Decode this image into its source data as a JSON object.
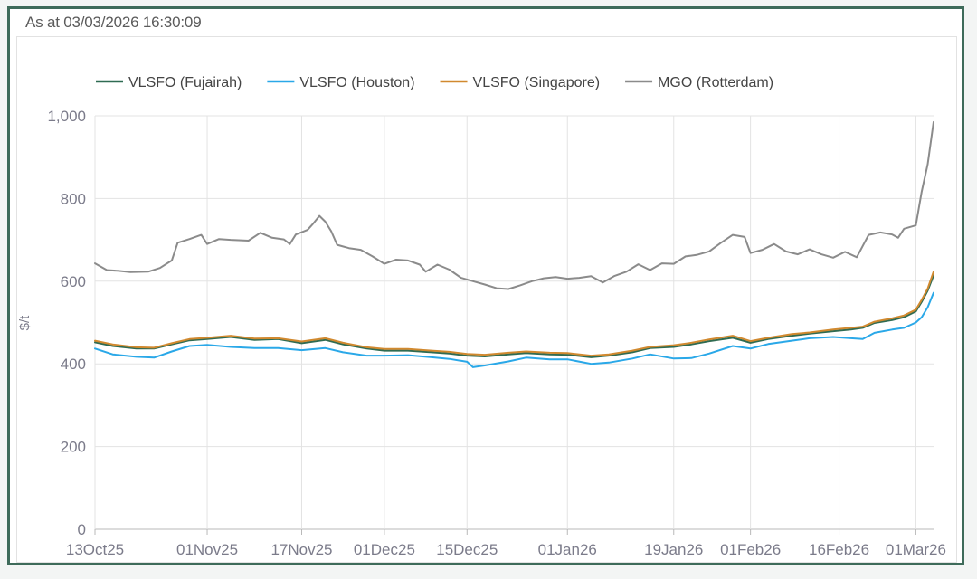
{
  "header": {
    "timestamp": "As at 03/03/2026 16:30:09"
  },
  "colors": {
    "frame": "#3e6b5a",
    "grid": "#e3e3e3",
    "axis": "#b9b9b9",
    "series": [
      "#2f6b52",
      "#2aa8e8",
      "#d1892f",
      "#8b8b8b"
    ]
  },
  "chart_data": {
    "type": "line",
    "title": "",
    "xlabel": "",
    "ylabel": "$/t",
    "ylim": [
      0,
      1000
    ],
    "yticks": [
      0,
      200,
      400,
      600,
      800,
      1000
    ],
    "ytick_labels": [
      "0",
      "200",
      "400",
      "600",
      "800",
      "1,000"
    ],
    "xlim_days": [
      0,
      142
    ],
    "xticks": [
      {
        "label": "13Oct25",
        "day": 0
      },
      {
        "label": "01Nov25",
        "day": 19
      },
      {
        "label": "17Nov25",
        "day": 35
      },
      {
        "label": "01Dec25",
        "day": 49
      },
      {
        "label": "15Dec25",
        "day": 63
      },
      {
        "label": "01Jan26",
        "day": 80
      },
      {
        "label": "19Jan26",
        "day": 98
      },
      {
        "label": "01Feb26",
        "day": 111
      },
      {
        "label": "16Feb26",
        "day": 126
      },
      {
        "label": "01Mar26",
        "day": 139
      }
    ],
    "grid": true,
    "legend_position": "top",
    "series": [
      {
        "name": "VLSFO (Fujairah)",
        "points": [
          [
            0,
            452
          ],
          [
            3,
            443
          ],
          [
            7,
            437
          ],
          [
            10,
            437
          ],
          [
            13,
            447
          ],
          [
            16,
            457
          ],
          [
            19,
            460
          ],
          [
            23,
            465
          ],
          [
            27,
            458
          ],
          [
            31,
            460
          ],
          [
            35,
            450
          ],
          [
            39,
            458
          ],
          [
            42,
            447
          ],
          [
            46,
            437
          ],
          [
            49,
            432
          ],
          [
            53,
            432
          ],
          [
            57,
            428
          ],
          [
            60,
            425
          ],
          [
            63,
            420
          ],
          [
            66,
            418
          ],
          [
            70,
            423
          ],
          [
            73,
            426
          ],
          [
            77,
            423
          ],
          [
            80,
            422
          ],
          [
            84,
            416
          ],
          [
            87,
            420
          ],
          [
            91,
            428
          ],
          [
            94,
            438
          ],
          [
            98,
            441
          ],
          [
            101,
            447
          ],
          [
            104,
            455
          ],
          [
            108,
            463
          ],
          [
            111,
            451
          ],
          [
            114,
            460
          ],
          [
            118,
            468
          ],
          [
            121,
            473
          ],
          [
            125,
            479
          ],
          [
            128,
            483
          ],
          [
            130,
            487
          ],
          [
            132,
            499
          ],
          [
            135,
            506
          ],
          [
            137,
            513
          ],
          [
            139,
            527
          ],
          [
            140,
            550
          ],
          [
            141,
            577
          ],
          [
            142,
            614
          ]
        ]
      },
      {
        "name": "VLSFO (Houston)",
        "points": [
          [
            0,
            437
          ],
          [
            3,
            423
          ],
          [
            7,
            417
          ],
          [
            10,
            415
          ],
          [
            13,
            430
          ],
          [
            16,
            443
          ],
          [
            19,
            446
          ],
          [
            23,
            441
          ],
          [
            27,
            438
          ],
          [
            31,
            438
          ],
          [
            35,
            433
          ],
          [
            39,
            438
          ],
          [
            42,
            428
          ],
          [
            46,
            420
          ],
          [
            49,
            420
          ],
          [
            53,
            421
          ],
          [
            57,
            416
          ],
          [
            60,
            412
          ],
          [
            63,
            405
          ],
          [
            64,
            392
          ],
          [
            66,
            396
          ],
          [
            70,
            406
          ],
          [
            73,
            415
          ],
          [
            77,
            411
          ],
          [
            80,
            411
          ],
          [
            84,
            400
          ],
          [
            87,
            403
          ],
          [
            91,
            413
          ],
          [
            94,
            423
          ],
          [
            98,
            413
          ],
          [
            101,
            414
          ],
          [
            104,
            425
          ],
          [
            108,
            443
          ],
          [
            111,
            437
          ],
          [
            114,
            448
          ],
          [
            118,
            456
          ],
          [
            121,
            462
          ],
          [
            125,
            465
          ],
          [
            128,
            462
          ],
          [
            130,
            460
          ],
          [
            132,
            475
          ],
          [
            135,
            483
          ],
          [
            137,
            487
          ],
          [
            139,
            500
          ],
          [
            140,
            513
          ],
          [
            141,
            537
          ],
          [
            142,
            572
          ]
        ]
      },
      {
        "name": "VLSFO (Singapore)",
        "points": [
          [
            0,
            456
          ],
          [
            3,
            447
          ],
          [
            7,
            440
          ],
          [
            10,
            439
          ],
          [
            13,
            450
          ],
          [
            16,
            460
          ],
          [
            19,
            463
          ],
          [
            23,
            468
          ],
          [
            27,
            461
          ],
          [
            31,
            462
          ],
          [
            35,
            454
          ],
          [
            39,
            462
          ],
          [
            42,
            451
          ],
          [
            46,
            440
          ],
          [
            49,
            436
          ],
          [
            53,
            436
          ],
          [
            57,
            432
          ],
          [
            60,
            429
          ],
          [
            63,
            424
          ],
          [
            66,
            422
          ],
          [
            70,
            427
          ],
          [
            73,
            430
          ],
          [
            77,
            427
          ],
          [
            80,
            426
          ],
          [
            84,
            420
          ],
          [
            87,
            423
          ],
          [
            91,
            432
          ],
          [
            94,
            441
          ],
          [
            98,
            445
          ],
          [
            101,
            451
          ],
          [
            104,
            459
          ],
          [
            108,
            468
          ],
          [
            111,
            455
          ],
          [
            114,
            463
          ],
          [
            118,
            472
          ],
          [
            121,
            476
          ],
          [
            125,
            483
          ],
          [
            128,
            487
          ],
          [
            130,
            490
          ],
          [
            132,
            502
          ],
          [
            135,
            510
          ],
          [
            137,
            517
          ],
          [
            139,
            531
          ],
          [
            140,
            555
          ],
          [
            141,
            582
          ],
          [
            142,
            623
          ]
        ]
      },
      {
        "name": "MGO (Rotterdam)",
        "points": [
          [
            0,
            643
          ],
          [
            2,
            627
          ],
          [
            4,
            625
          ],
          [
            6,
            622
          ],
          [
            9,
            623
          ],
          [
            11,
            632
          ],
          [
            13,
            650
          ],
          [
            14,
            693
          ],
          [
            16,
            702
          ],
          [
            18,
            712
          ],
          [
            19,
            690
          ],
          [
            21,
            702
          ],
          [
            23,
            700
          ],
          [
            26,
            698
          ],
          [
            28,
            717
          ],
          [
            30,
            705
          ],
          [
            32,
            701
          ],
          [
            33,
            690
          ],
          [
            34,
            713
          ],
          [
            36,
            724
          ],
          [
            37,
            740
          ],
          [
            38,
            758
          ],
          [
            39,
            744
          ],
          [
            40,
            721
          ],
          [
            41,
            688
          ],
          [
            43,
            680
          ],
          [
            45,
            676
          ],
          [
            47,
            660
          ],
          [
            49,
            642
          ],
          [
            51,
            652
          ],
          [
            53,
            650
          ],
          [
            55,
            640
          ],
          [
            56,
            623
          ],
          [
            58,
            640
          ],
          [
            60,
            628
          ],
          [
            62,
            608
          ],
          [
            64,
            600
          ],
          [
            66,
            592
          ],
          [
            68,
            583
          ],
          [
            70,
            581
          ],
          [
            72,
            590
          ],
          [
            74,
            600
          ],
          [
            76,
            607
          ],
          [
            78,
            610
          ],
          [
            80,
            606
          ],
          [
            82,
            608
          ],
          [
            84,
            612
          ],
          [
            86,
            597
          ],
          [
            88,
            613
          ],
          [
            90,
            623
          ],
          [
            92,
            641
          ],
          [
            94,
            627
          ],
          [
            96,
            643
          ],
          [
            98,
            642
          ],
          [
            100,
            660
          ],
          [
            102,
            664
          ],
          [
            104,
            672
          ],
          [
            106,
            693
          ],
          [
            108,
            712
          ],
          [
            110,
            707
          ],
          [
            111,
            668
          ],
          [
            113,
            676
          ],
          [
            115,
            690
          ],
          [
            117,
            672
          ],
          [
            119,
            665
          ],
          [
            121,
            677
          ],
          [
            123,
            665
          ],
          [
            125,
            657
          ],
          [
            127,
            671
          ],
          [
            129,
            658
          ],
          [
            131,
            712
          ],
          [
            133,
            718
          ],
          [
            135,
            713
          ],
          [
            136,
            705
          ],
          [
            137,
            727
          ],
          [
            139,
            735
          ],
          [
            140,
            817
          ],
          [
            141,
            883
          ],
          [
            142,
            985
          ]
        ]
      }
    ]
  }
}
